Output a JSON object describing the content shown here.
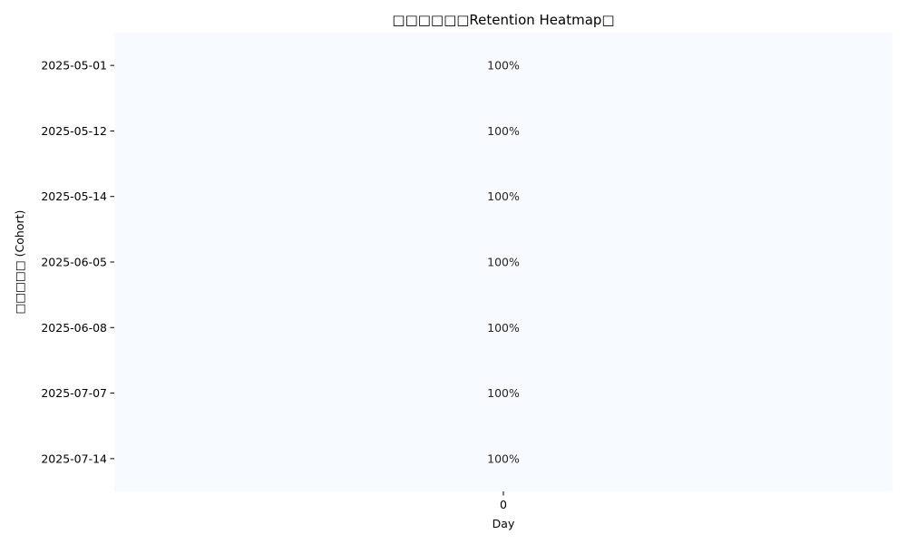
{
  "chart_data": {
    "type": "heatmap",
    "title": "□□□□□□Retention Heatmap□",
    "xlabel": "Day",
    "ylabel": "□□□□□ (Cohort)",
    "x": [
      0
    ],
    "x_tick_labels": [
      "0"
    ],
    "cohorts": [
      "2025-05-01",
      "2025-05-12",
      "2025-05-14",
      "2025-06-05",
      "2025-06-08",
      "2025-07-07",
      "2025-07-14"
    ],
    "values": [
      [
        1.0
      ],
      [
        1.0
      ],
      [
        1.0
      ],
      [
        1.0
      ],
      [
        1.0
      ],
      [
        1.0
      ],
      [
        1.0
      ]
    ],
    "cell_labels": [
      [
        "100%"
      ],
      [
        "100%"
      ],
      [
        "100%"
      ],
      [
        "100%"
      ],
      [
        "100%"
      ],
      [
        "100%"
      ],
      [
        "100%"
      ]
    ],
    "colormap": "Blues",
    "cell_color": "#f7fbff",
    "colorbar": false,
    "grid": false
  }
}
